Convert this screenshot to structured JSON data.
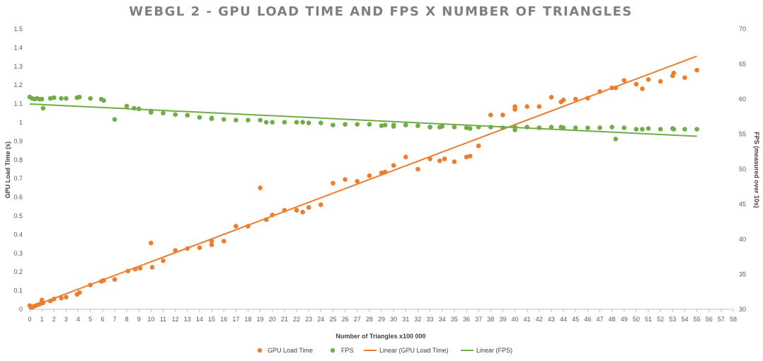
{
  "chart_data": {
    "type": "scatter",
    "title": "WEBGL 2 - GPU LOAD TIME AND FPS X NUMBER OF TRIANGLES",
    "xlabel": "Number of Triangles x100 000",
    "ylabel": "GPU Load Time (s)",
    "y2label": "FPS (measured over 10s)",
    "xlim": [
      0,
      58
    ],
    "ylim": [
      0,
      1.5
    ],
    "y2lim": [
      30,
      70
    ],
    "x_ticks": [
      "0",
      "1",
      "2",
      "3",
      "4",
      "5",
      "6",
      "7",
      "8",
      "9",
      "10",
      "11",
      "12",
      "13",
      "14",
      "15",
      "16",
      "17",
      "18",
      "19",
      "20",
      "21",
      "22",
      "23",
      "24",
      "25",
      "26",
      "27",
      "28",
      "29",
      "30",
      "31",
      "32",
      "33",
      "34",
      "35",
      "36",
      "37",
      "38",
      "39",
      "40",
      "41",
      "42",
      "43",
      "44",
      "45",
      "46",
      "47",
      "48",
      "49",
      "50",
      "51",
      "52",
      "53",
      "54",
      "55",
      "56",
      "57",
      "58"
    ],
    "y_ticks": [
      "0",
      "0.1",
      "0.2",
      "0.3",
      "0.4",
      "0.5",
      "0.6",
      "0.7",
      "0.8",
      "0.9",
      "1",
      "1.1",
      "1.2",
      "1.3",
      "1.4",
      "1.5"
    ],
    "y2_ticks": [
      "30",
      "35",
      "40",
      "45",
      "50",
      "55",
      "60",
      "65",
      "70"
    ],
    "grid": false,
    "legend_position": "bottom",
    "colors": {
      "gpu": "#ed7d31",
      "fps": "#70ad47"
    },
    "series": [
      {
        "name": "GPU Load Time",
        "axis": "left",
        "x": [
          0,
          0.1,
          0.2,
          0.3,
          0.5,
          0.7,
          0.9,
          1,
          1.1,
          1.7,
          2,
          2.6,
          3,
          3.9,
          4.1,
          5,
          5.9,
          6.1,
          7,
          8.1,
          8.7,
          9.1,
          10,
          10.1,
          11,
          12,
          13,
          14,
          15,
          15,
          16,
          17,
          18,
          19,
          19.5,
          20,
          21,
          22,
          22.5,
          23,
          24,
          25,
          26,
          27,
          28,
          29,
          29.3,
          30,
          31,
          32,
          33,
          33.8,
          34.2,
          35,
          36,
          36.3,
          37,
          38,
          39,
          40,
          40,
          41,
          42,
          43,
          43.8,
          44,
          45,
          46,
          47,
          48,
          48.3,
          49,
          50,
          50.5,
          51,
          52,
          53,
          53.1,
          54,
          55
        ],
        "y": [
          0.02,
          0.01,
          0.01,
          0.015,
          0.02,
          0.025,
          0.03,
          0.05,
          0.035,
          0.045,
          0.055,
          0.06,
          0.065,
          0.08,
          0.09,
          0.13,
          0.15,
          0.155,
          0.16,
          0.205,
          0.215,
          0.22,
          0.355,
          0.225,
          0.26,
          0.315,
          0.325,
          0.33,
          0.345,
          0.365,
          0.365,
          0.445,
          0.445,
          0.65,
          0.48,
          0.505,
          0.53,
          0.53,
          0.52,
          0.545,
          0.56,
          0.675,
          0.695,
          0.685,
          0.715,
          0.73,
          0.735,
          0.77,
          0.815,
          0.75,
          0.805,
          0.795,
          0.805,
          0.79,
          0.815,
          0.82,
          0.875,
          1.04,
          1.04,
          1.085,
          1.07,
          1.085,
          1.085,
          1.135,
          1.11,
          1.12,
          1.125,
          1.13,
          1.165,
          1.185,
          1.185,
          1.225,
          1.205,
          1.18,
          1.23,
          1.22,
          1.25,
          1.265,
          1.24,
          1.28
        ]
      },
      {
        "name": "FPS",
        "axis": "right",
        "x": [
          0,
          0.2,
          0.4,
          0.6,
          0.8,
          1,
          1.1,
          1.7,
          2,
          2.6,
          3,
          3.9,
          4.1,
          5,
          5.9,
          6.1,
          7,
          8,
          8.6,
          9,
          10,
          10,
          11,
          12,
          13,
          14,
          15,
          15,
          16,
          17,
          18,
          19,
          19.5,
          20,
          21,
          22,
          22.5,
          23,
          24,
          25,
          26,
          27,
          28,
          29,
          29.3,
          30,
          30,
          31,
          32,
          33,
          33,
          33.8,
          34,
          35,
          36,
          36.3,
          37,
          38,
          39,
          40,
          40,
          41,
          42,
          43,
          43.8,
          44,
          45,
          46,
          47,
          48,
          48.3,
          49,
          50,
          50.5,
          51,
          52,
          53,
          53.1,
          54,
          55
        ],
        "y": [
          60.3,
          60.1,
          60,
          60.1,
          60,
          60,
          58.7,
          60.1,
          60.2,
          60.1,
          60.1,
          60.2,
          60.3,
          60.1,
          60,
          59.8,
          57.1,
          59,
          58.7,
          58.6,
          58.3,
          58.1,
          58,
          57.8,
          57.7,
          57.4,
          57.3,
          57.2,
          57.1,
          57,
          57,
          57,
          56.7,
          56.7,
          56.7,
          56.7,
          56.7,
          56.6,
          56.6,
          56.3,
          56.4,
          56.4,
          56.4,
          56.2,
          56.3,
          56.3,
          56.1,
          56.3,
          56.2,
          56,
          56,
          56,
          56.1,
          56,
          55.9,
          55.8,
          56,
          56,
          55.9,
          56,
          55.6,
          56,
          55.9,
          56,
          56,
          55.9,
          55.9,
          55.9,
          55.9,
          56,
          54.3,
          55.9,
          55.7,
          55.7,
          55.8,
          55.7,
          55.8,
          55.7,
          55.7,
          55.7
        ]
      },
      {
        "name": "Linear (GPU Load Time)",
        "axis": "left",
        "kind": "trendline",
        "x": [
          0,
          55
        ],
        "y": [
          0.01,
          1.355
        ]
      },
      {
        "name": "Linear (FPS)",
        "axis": "right",
        "kind": "trendline",
        "x": [
          0,
          55
        ],
        "y": [
          59.3,
          54.7
        ]
      }
    ]
  }
}
